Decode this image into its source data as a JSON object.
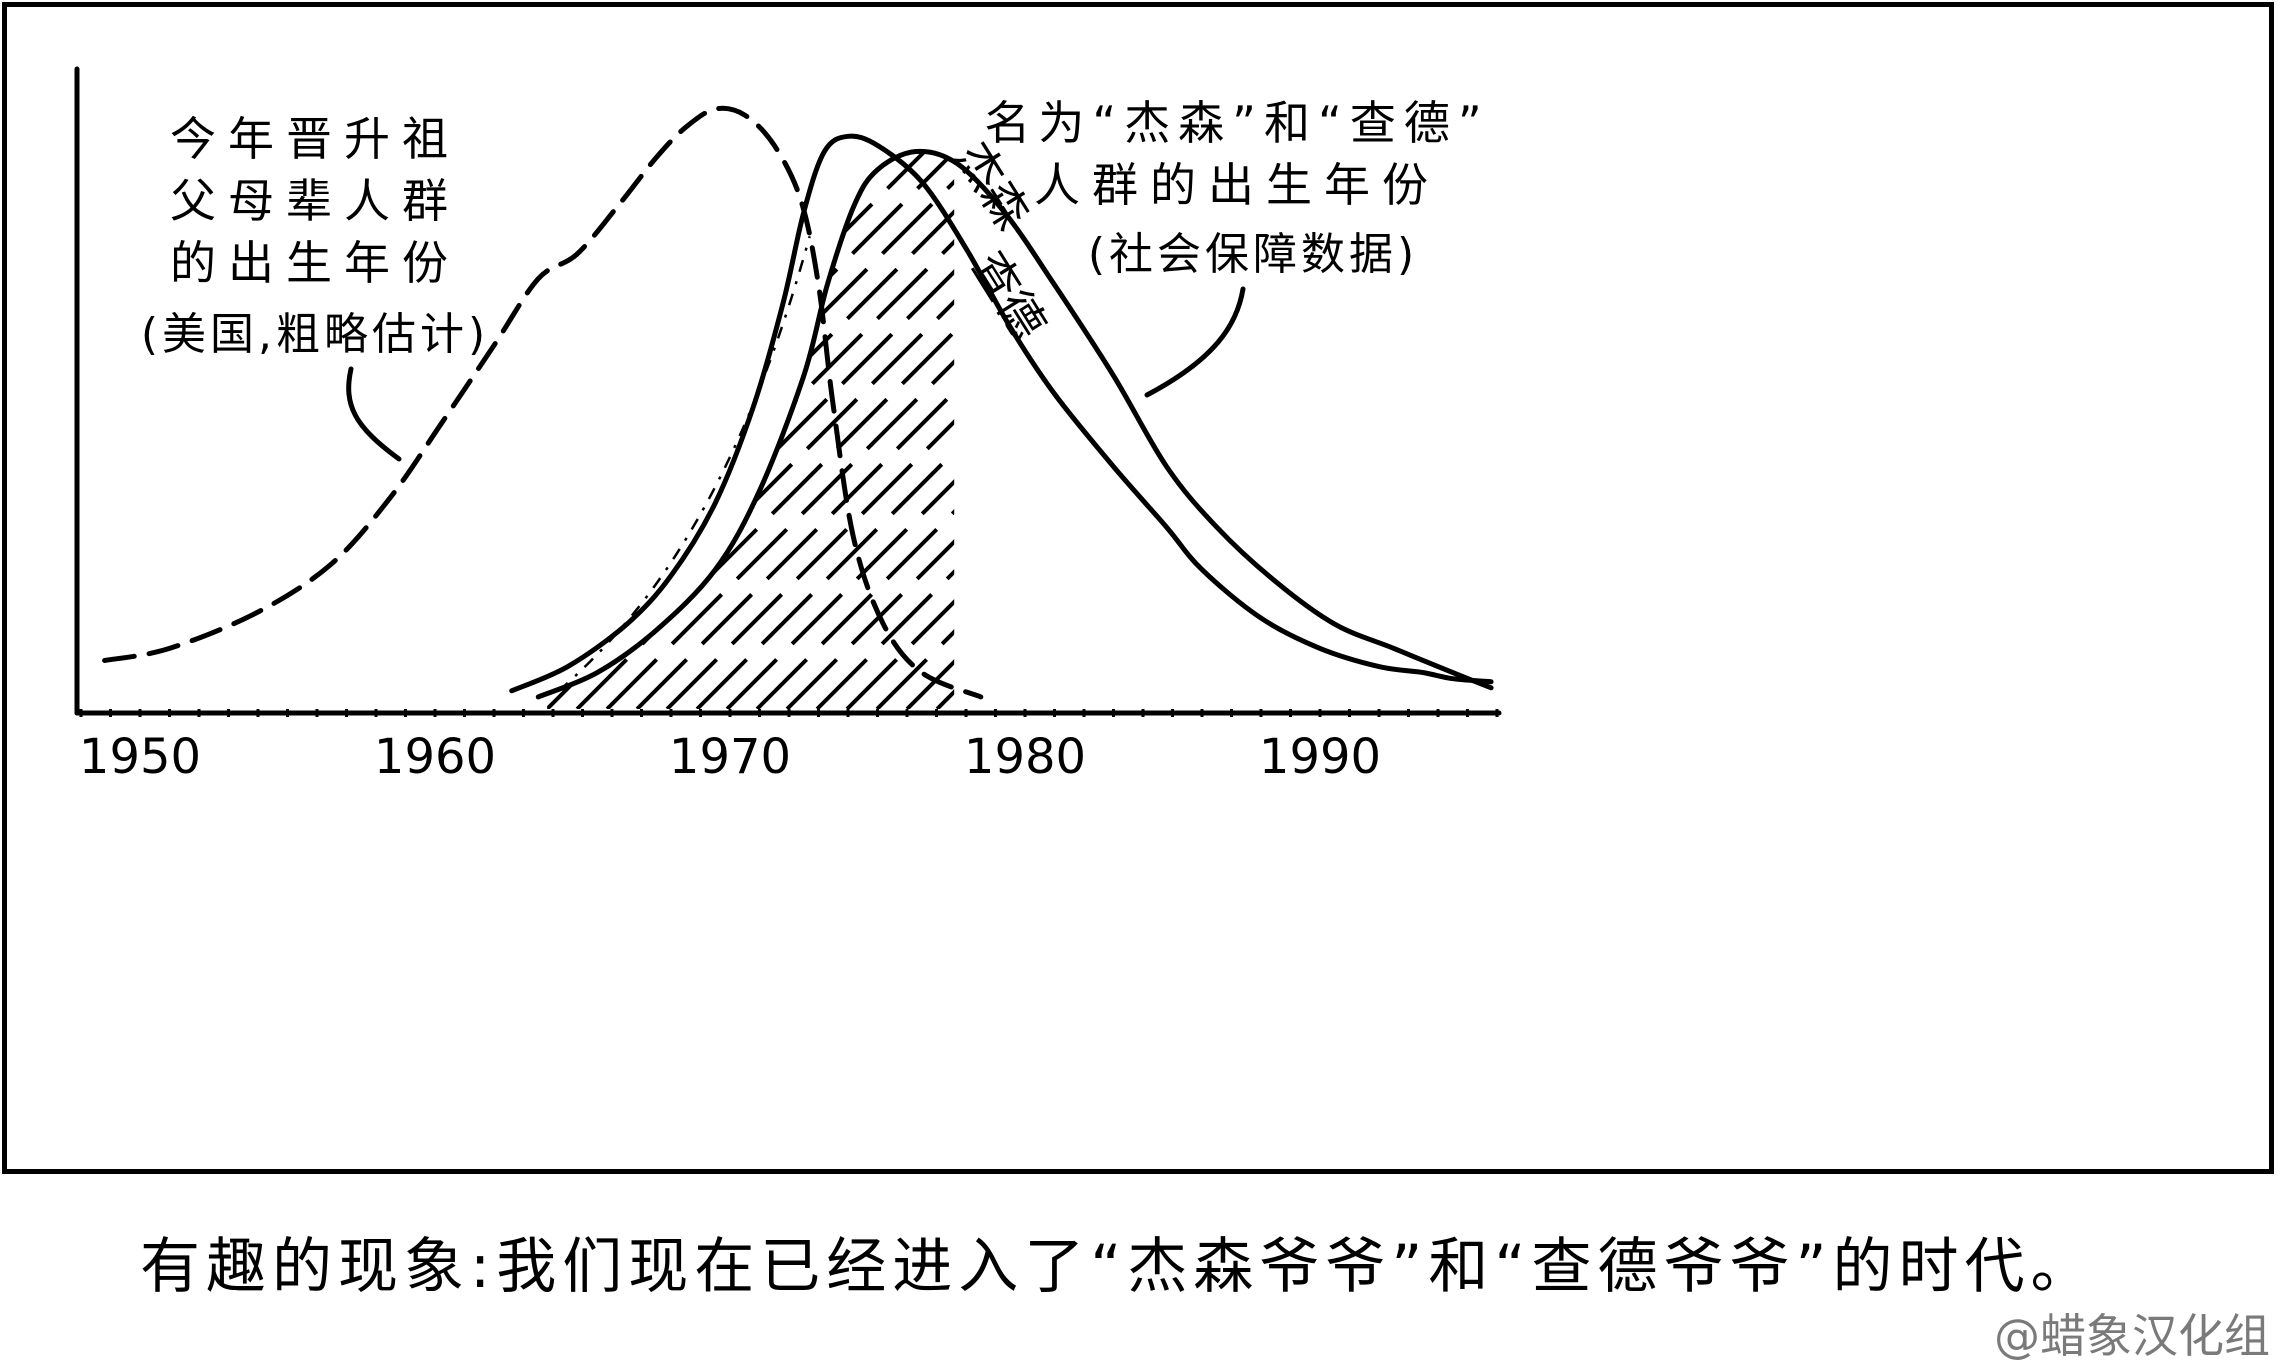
{
  "chart_data": {
    "type": "line",
    "x_ticks": [
      "1950",
      "1960",
      "1970",
      "1980",
      "1990"
    ],
    "xlim": [
      1948,
      1996
    ],
    "ylim": [
      0,
      100
    ],
    "grid": false,
    "series": [
      {
        "key": "grandparents",
        "style": "dashed",
        "label_lines": [
          "今年晋升祖",
          "父母辈人群",
          "的出生年份"
        ],
        "note": "(美国,粗略估计)",
        "points": [
          [
            1948.8,
            8
          ],
          [
            1951,
            10
          ],
          [
            1954,
            16
          ],
          [
            1956.5,
            24
          ],
          [
            1958.5,
            35
          ],
          [
            1960.2,
            47
          ],
          [
            1962,
            60
          ],
          [
            1963.5,
            71
          ],
          [
            1964.8,
            75
          ],
          [
            1966.2,
            83
          ],
          [
            1967.5,
            91
          ],
          [
            1968.5,
            96
          ],
          [
            1969.5,
            99
          ],
          [
            1970.5,
            98
          ],
          [
            1971.5,
            93
          ],
          [
            1972.4,
            84
          ],
          [
            1973,
            70
          ],
          [
            1973.5,
            50
          ],
          [
            1974.2,
            28
          ],
          [
            1975.2,
            14
          ],
          [
            1976.5,
            6
          ],
          [
            1978.5,
            2
          ]
        ]
      },
      {
        "key": "jason",
        "style": "solid",
        "label": "杰森",
        "points": [
          [
            1962.6,
            3
          ],
          [
            1964.5,
            7
          ],
          [
            1966.5,
            14
          ],
          [
            1968,
            22
          ],
          [
            1969.5,
            34
          ],
          [
            1970.8,
            50
          ],
          [
            1971.8,
            67
          ],
          [
            1972.5,
            82
          ],
          [
            1973.2,
            92
          ],
          [
            1974,
            94.5
          ],
          [
            1975,
            93
          ],
          [
            1976.5,
            87
          ],
          [
            1978,
            76
          ],
          [
            1979.5,
            63
          ],
          [
            1981,
            52
          ],
          [
            1983,
            40
          ],
          [
            1984.8,
            30
          ],
          [
            1986,
            23
          ],
          [
            1988,
            15
          ],
          [
            1990,
            10
          ],
          [
            1992,
            7
          ],
          [
            1993.5,
            6
          ],
          [
            1994.5,
            5
          ],
          [
            1995.8,
            4.5
          ]
        ]
      },
      {
        "key": "chad",
        "style": "solid",
        "label": "查德",
        "points": [
          [
            1963.5,
            2
          ],
          [
            1965.5,
            6
          ],
          [
            1967.5,
            13
          ],
          [
            1969.5,
            23
          ],
          [
            1971,
            36
          ],
          [
            1972.5,
            55
          ],
          [
            1973.3,
            70
          ],
          [
            1974.2,
            83
          ],
          [
            1975,
            89
          ],
          [
            1976.3,
            92
          ],
          [
            1977.7,
            90
          ],
          [
            1979.3,
            82
          ],
          [
            1981,
            70
          ],
          [
            1983,
            55
          ],
          [
            1984.8,
            40
          ],
          [
            1986.5,
            30
          ],
          [
            1988.5,
            21
          ],
          [
            1990.5,
            14
          ],
          [
            1992.5,
            10
          ],
          [
            1994.5,
            6
          ],
          [
            1995.8,
            3.5
          ]
        ]
      }
    ],
    "right_label_lines": [
      "名为“杰森”和“查德”",
      "人群的出生年份"
    ],
    "right_note": "(社会保障数据)"
  },
  "caption": "有趣的现象:我们现在已经进入了“杰森爷爷”和“查德爷爷”的时代。",
  "credit": "@蜡象汉化组"
}
